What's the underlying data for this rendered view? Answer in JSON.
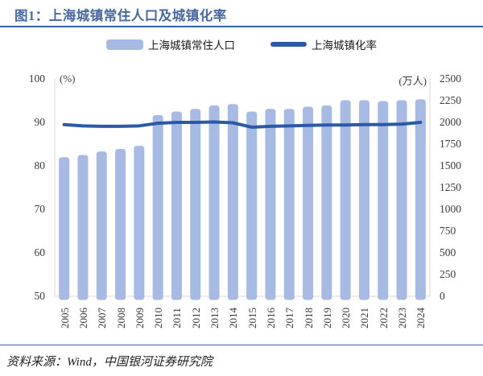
{
  "header": {
    "title": "图1：上海城镇常住人口及城镇化率"
  },
  "legend": {
    "bar_label": "上海城镇常住人口",
    "line_label": "上海城镇化率"
  },
  "footer": {
    "source": "资料来源：Wind，中国银河证券研究院"
  },
  "colors": {
    "bar_fill": "#a7bae3",
    "line_stroke": "#2c59a5",
    "title_blue": "#47699f",
    "rule_blue": "#3660a8",
    "axis_line": "#d9d9d9"
  },
  "chart_data": {
    "type": "bar",
    "subtype": "combo-bar-line",
    "title": "上海城镇常住人口及城镇化率",
    "categories": [
      "2005",
      "2006",
      "2007",
      "2008",
      "2009",
      "2010",
      "2011",
      "2012",
      "2013",
      "2014",
      "2015",
      "2016",
      "2017",
      "2018",
      "2019",
      "2020",
      "2021",
      "2022",
      "2023",
      "2024"
    ],
    "series": [
      {
        "name": "上海城镇常住人口",
        "type": "bar",
        "axis": "right",
        "unit": "万人",
        "values": [
          1600,
          1625,
          1665,
          1695,
          1730,
          2085,
          2125,
          2155,
          2195,
          2210,
          2125,
          2155,
          2155,
          2180,
          2195,
          2255,
          2255,
          2245,
          2255,
          2265
        ]
      },
      {
        "name": "上海城镇化率",
        "type": "line",
        "axis": "left",
        "unit": "%",
        "values": [
          89.5,
          89.2,
          89.1,
          89.1,
          89.2,
          89.8,
          90.0,
          90.0,
          90.1,
          89.9,
          88.9,
          89.1,
          89.2,
          89.3,
          89.4,
          89.4,
          89.5,
          89.5,
          89.6,
          90.0
        ]
      }
    ],
    "left_axis": {
      "label": "(%)",
      "min": 50,
      "max": 100,
      "ticks": [
        100,
        90,
        80,
        70,
        60,
        50
      ]
    },
    "right_axis": {
      "label": "(万人)",
      "min": 0,
      "max": 2500,
      "ticks": [
        2500,
        2250,
        2000,
        1750,
        1500,
        1250,
        1000,
        750,
        500,
        250,
        0
      ]
    },
    "grid": false,
    "legend_position": "top"
  }
}
